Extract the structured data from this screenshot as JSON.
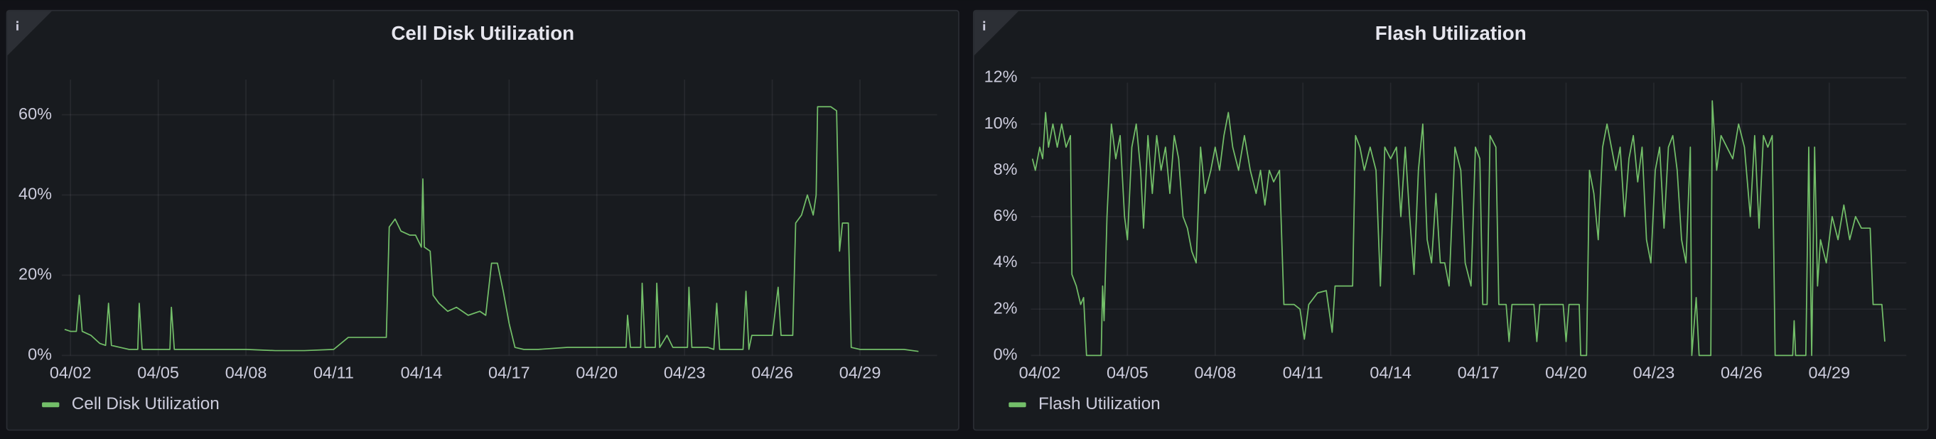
{
  "chart_data": [
    {
      "type": "line",
      "title": "Cell Disk Utilization",
      "x": [
        1.8,
        2.0,
        2.2,
        2.3,
        2.4,
        2.7,
        3.0,
        3.2,
        3.3,
        3.4,
        3.7,
        4.0,
        4.3,
        4.35,
        4.45,
        5.0,
        5.4,
        5.45,
        5.55,
        6,
        7,
        8,
        9,
        10,
        11,
        11.5,
        12,
        12.8,
        12.9,
        13.1,
        13.3,
        13.6,
        13.8,
        14.0,
        14.05,
        14.1,
        14.3,
        14.4,
        14.6,
        14.9,
        15.2,
        15.6,
        16.0,
        16.2,
        16.4,
        16.6,
        16.8,
        17.0,
        17.2,
        17.5,
        18,
        19,
        20,
        20.6,
        21.0,
        21.05,
        21.15,
        21.5,
        21.55,
        21.65,
        22.0,
        22.05,
        22.15,
        22.4,
        22.6,
        23.1,
        23.15,
        23.25,
        23.8,
        24.0,
        24.1,
        24.2,
        25.0,
        25.1,
        25.2,
        25.3,
        25.5,
        25.8,
        26.0,
        26.2,
        26.3,
        26.7,
        26.8,
        27.0,
        27.2,
        27.4,
        27.5,
        27.55,
        28.0,
        28.2,
        28.3,
        28.4,
        28.6,
        28.7,
        29,
        30,
        30.5,
        31
      ],
      "series": [
        {
          "name": "Cell Disk Utilization",
          "color": "#73bf69",
          "values": [
            6.5,
            6,
            6,
            15,
            6,
            5,
            3,
            2.5,
            13,
            2.5,
            2,
            1.5,
            1.5,
            13,
            1.5,
            1.5,
            1.5,
            12,
            1.5,
            1.5,
            1.5,
            1.5,
            1.2,
            1.2,
            1.5,
            4.5,
            4.5,
            4.5,
            32,
            34,
            31,
            30,
            30,
            27,
            44,
            27,
            26,
            15,
            13,
            11,
            12,
            10,
            11,
            10,
            23,
            23,
            16,
            8,
            2,
            1.5,
            1.5,
            2,
            2,
            2,
            2,
            10,
            2,
            2,
            18,
            2,
            2,
            18,
            2,
            5,
            2,
            2,
            17,
            2,
            2,
            1.5,
            13,
            1.5,
            1.5,
            16,
            1.5,
            5,
            5,
            5,
            5,
            17,
            5,
            5,
            33,
            35,
            40,
            35,
            40,
            62,
            62,
            61,
            26,
            33,
            33,
            2,
            1.5,
            1.5,
            1.5,
            1
          ]
        }
      ],
      "xlim": [
        1.7,
        31.3
      ],
      "xticks": [
        {
          "value": 2,
          "label": "04/02"
        },
        {
          "value": 5,
          "label": "04/05"
        },
        {
          "value": 8,
          "label": "04/08"
        },
        {
          "value": 11,
          "label": "04/11"
        },
        {
          "value": 14,
          "label": "04/14"
        },
        {
          "value": 17,
          "label": "04/17"
        },
        {
          "value": 20,
          "label": "04/20"
        },
        {
          "value": 23,
          "label": "04/23"
        },
        {
          "value": 26,
          "label": "04/26"
        },
        {
          "value": 29,
          "label": "04/29"
        }
      ],
      "ylim": [
        0,
        70
      ],
      "yticks": [
        {
          "value": 0,
          "label": "0%"
        },
        {
          "value": 20,
          "label": "20%"
        },
        {
          "value": 40,
          "label": "40%"
        },
        {
          "value": 60,
          "label": "60%"
        }
      ],
      "grid": true,
      "legend": "bottom-left"
    },
    {
      "type": "line",
      "title": "Flash Utilization",
      "x": [
        1.75,
        1.85,
        2.0,
        2.1,
        2.2,
        2.3,
        2.45,
        2.6,
        2.75,
        2.9,
        3.05,
        3.1,
        3.25,
        3.4,
        3.5,
        3.6,
        4.1,
        4.15,
        4.2,
        4.3,
        4.45,
        4.6,
        4.75,
        4.9,
        5.0,
        5.15,
        5.3,
        5.45,
        5.55,
        5.7,
        5.85,
        6.0,
        6.15,
        6.3,
        6.45,
        6.6,
        6.75,
        6.9,
        7.05,
        7.2,
        7.35,
        7.5,
        7.65,
        7.85,
        8.0,
        8.15,
        8.3,
        8.45,
        8.6,
        8.8,
        9.0,
        9.2,
        9.4,
        9.55,
        9.7,
        9.85,
        10.0,
        10.2,
        10.35,
        10.7,
        10.9,
        11.05,
        11.2,
        11.5,
        11.8,
        12.0,
        12.1,
        12.4,
        12.7,
        12.8,
        12.95,
        13.1,
        13.3,
        13.5,
        13.65,
        13.8,
        14.0,
        14.2,
        14.35,
        14.5,
        14.65,
        14.8,
        14.95,
        15.1,
        15.25,
        15.4,
        15.55,
        15.7,
        15.85,
        16.0,
        16.2,
        16.4,
        16.55,
        16.75,
        16.9,
        17.05,
        17.15,
        17.3,
        17.4,
        17.6,
        17.7,
        17.95,
        18.05,
        18.15,
        18.9,
        19.0,
        19.1,
        19.9,
        20.0,
        20.1,
        20.45,
        20.5,
        20.7,
        20.8,
        20.95,
        21.1,
        21.25,
        21.4,
        21.55,
        21.7,
        21.85,
        22.0,
        22.15,
        22.3,
        22.45,
        22.6,
        22.75,
        22.9,
        23.05,
        23.2,
        23.35,
        23.5,
        23.65,
        23.8,
        23.95,
        24.1,
        24.25,
        24.3,
        24.45,
        24.55,
        24.95,
        25.0,
        25.15,
        25.3,
        25.5,
        25.7,
        25.9,
        26.1,
        26.3,
        26.45,
        26.6,
        26.75,
        26.9,
        27.05,
        27.15,
        27.75,
        27.8,
        27.85,
        28.2,
        28.3,
        28.4,
        28.5,
        28.6,
        28.7,
        28.9,
        29.1,
        29.3,
        29.5,
        29.7,
        29.9,
        30.1,
        30.4,
        30.5,
        30.8,
        30.9
      ],
      "series": [
        {
          "name": "Flash Utilization",
          "color": "#73bf69",
          "values": [
            8.5,
            8,
            9,
            8.5,
            10.5,
            9,
            10,
            9,
            10,
            9,
            9.5,
            3.5,
            3,
            2.2,
            2.5,
            0,
            0,
            3,
            1.5,
            6,
            10,
            8.5,
            9.5,
            6,
            5,
            9,
            10,
            8,
            5.5,
            9.5,
            7,
            9.5,
            8,
            9,
            7,
            9.5,
            8.5,
            6,
            5.5,
            4.5,
            4,
            9,
            7,
            8,
            9,
            8,
            9.5,
            10.5,
            9,
            8,
            9.5,
            8,
            7,
            8,
            6.5,
            8,
            7.5,
            8,
            2.2,
            2.2,
            2,
            0.7,
            2.2,
            2.7,
            2.8,
            1,
            3,
            3,
            3,
            9.5,
            9,
            8,
            9,
            8,
            3,
            9,
            8.5,
            9,
            6,
            9,
            6,
            3.5,
            8,
            10,
            5,
            4,
            7,
            4,
            4,
            3,
            9,
            8,
            4,
            3,
            9,
            8.5,
            2.2,
            2.2,
            9.5,
            9,
            2.2,
            2.2,
            0.6,
            2.2,
            2.2,
            0.6,
            2.2,
            2.2,
            0.6,
            2.2,
            2.2,
            0,
            0,
            8,
            7,
            5,
            9,
            10,
            9,
            8,
            9,
            6,
            8.5,
            9.5,
            7.5,
            9,
            5,
            4,
            8,
            9,
            5.5,
            9,
            9.5,
            8,
            5,
            4,
            9,
            0,
            2.5,
            0,
            0,
            11,
            8,
            9.5,
            9,
            8.5,
            10,
            9,
            6,
            9.5,
            5.5,
            9.5,
            9,
            9.5,
            0,
            0,
            1.5,
            0,
            0,
            9,
            0,
            9,
            3,
            5,
            4,
            6,
            5,
            6.5,
            5,
            6,
            5.5,
            5.5,
            2.2,
            2.2,
            0.6
          ]
        }
      ],
      "xlim": [
        1.7,
        31.3
      ],
      "xticks": [
        {
          "value": 2,
          "label": "04/02"
        },
        {
          "value": 5,
          "label": "04/05"
        },
        {
          "value": 8,
          "label": "04/08"
        },
        {
          "value": 11,
          "label": "04/11"
        },
        {
          "value": 14,
          "label": "04/14"
        },
        {
          "value": 17,
          "label": "04/17"
        },
        {
          "value": 20,
          "label": "04/20"
        },
        {
          "value": 23,
          "label": "04/23"
        },
        {
          "value": 26,
          "label": "04/26"
        },
        {
          "value": 29,
          "label": "04/29"
        }
      ],
      "ylim": [
        0,
        12
      ],
      "yticks": [
        {
          "value": 0,
          "label": "0%"
        },
        {
          "value": 2,
          "label": "2%"
        },
        {
          "value": 4,
          "label": "4%"
        },
        {
          "value": 6,
          "label": "6%"
        },
        {
          "value": 8,
          "label": "8%"
        },
        {
          "value": 10,
          "label": "10%"
        },
        {
          "value": 12,
          "label": "12%"
        }
      ],
      "grid": true,
      "legend": "bottom-left"
    }
  ]
}
